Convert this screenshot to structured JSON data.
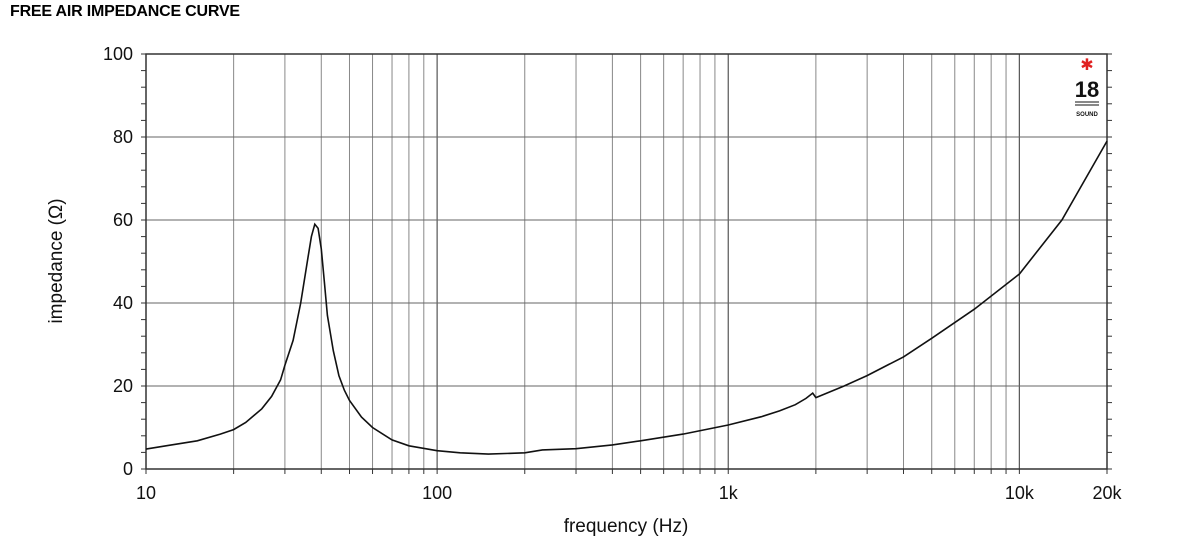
{
  "chart_data": {
    "type": "line",
    "title": "FREE AIR IMPEDANCE CURVE",
    "xlabel": "frequency (Hz)",
    "ylabel": "impedance (Ω)",
    "x_scale": "log",
    "xlim": [
      10,
      20000
    ],
    "ylim": [
      0,
      100
    ],
    "grid": true,
    "x_major_ticks": [
      {
        "value": 10,
        "label": "10"
      },
      {
        "value": 100,
        "label": "100"
      },
      {
        "value": 1000,
        "label": "1k"
      },
      {
        "value": 10000,
        "label": "10k"
      },
      {
        "value": 20000,
        "label": "20k"
      }
    ],
    "y_ticks": [
      {
        "value": 0,
        "label": "0"
      },
      {
        "value": 20,
        "label": "20"
      },
      {
        "value": 40,
        "label": "40"
      },
      {
        "value": 60,
        "label": "60"
      },
      {
        "value": 80,
        "label": "80"
      },
      {
        "value": 100,
        "label": "100"
      }
    ],
    "series": [
      {
        "x": [
          10,
          12,
          15,
          18,
          20,
          22,
          25,
          27,
          29,
          30,
          32,
          34,
          36,
          37,
          38,
          39,
          40,
          41,
          42,
          44,
          46,
          48,
          50,
          55,
          60,
          70,
          80,
          100,
          120,
          150,
          200,
          230,
          300,
          400,
          500,
          700,
          1000,
          1300,
          1500,
          1700,
          1850,
          1950,
          2000,
          2100,
          2500,
          3000,
          4000,
          5000,
          7000,
          10000,
          14000,
          20000
        ],
        "y": [
          4.8,
          5.7,
          6.8,
          8.4,
          9.5,
          11.2,
          14.5,
          17.5,
          21.5,
          25,
          31,
          40,
          51,
          56,
          59,
          58,
          53,
          45,
          37,
          28.5,
          22.5,
          19,
          16.5,
          12.5,
          10,
          7,
          5.6,
          4.4,
          3.9,
          3.6,
          3.9,
          4.6,
          4.9,
          5.8,
          6.8,
          8.4,
          10.6,
          12.6,
          14,
          15.5,
          17,
          18.3,
          17.2,
          17.8,
          20,
          22.5,
          27,
          31.5,
          38.5,
          47,
          60,
          79
        ]
      }
    ]
  },
  "logo": {
    "number": "18",
    "word": "SOUND",
    "star_color": "#e02020"
  }
}
